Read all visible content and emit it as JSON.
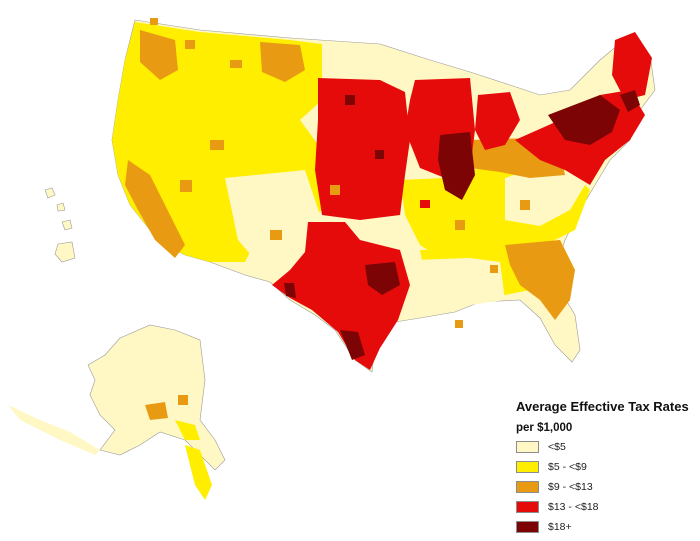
{
  "map": {
    "name": "average-effective-tax-rates-by-county",
    "categories": [
      {
        "key": "c1",
        "label": "<$5",
        "color": "#fff8c4"
      },
      {
        "key": "c2",
        "label": "$5 - <$9",
        "color": "#ffee00"
      },
      {
        "key": "c3",
        "label": "$9 - <$13",
        "color": "#e89b12"
      },
      {
        "key": "c4",
        "label": "$13 - <$18",
        "color": "#e60b0b"
      },
      {
        "key": "c5",
        "label": "$18+",
        "color": "#7d0404"
      }
    ]
  },
  "legend": {
    "title": "Average Effective Tax Rates",
    "subtitle": "per $1,000"
  }
}
